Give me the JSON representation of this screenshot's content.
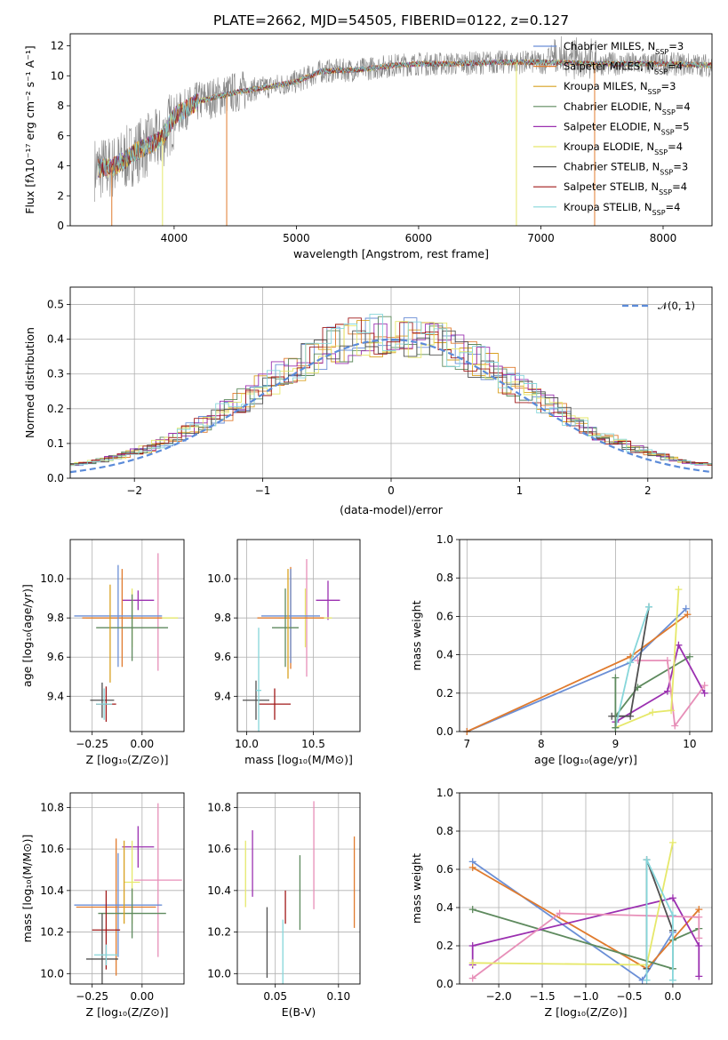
{
  "figure": {
    "title": "PLATE=2662, MJD=54505, FIBERID=0122, z=0.127",
    "colors": {
      "Chabrier MILES": "#6b8fd6",
      "Salpeter MILES": "#e07b2e",
      "Kroupa MILES": "#d9a020",
      "Chabrier ELODIE": "#5e8a5e",
      "Salpeter ELODIE": "#9b30b0",
      "Kroupa ELODIE": "#e6e86a",
      "Chabrier STELIB": "#505050",
      "Salpeter STELIB": "#a01818",
      "Kroupa STELIB": "#86d6da",
      "pink": "#e78fb8"
    }
  },
  "chart_data": [
    {
      "id": "spectrum",
      "type": "line",
      "xlabel": "wavelength [Angstrom, rest frame]",
      "ylabel": "Flux [fλ10⁻¹⁷ erg cm⁻² s⁻¹ A⁻¹]",
      "xlim": [
        3150,
        8400
      ],
      "ylim": [
        0,
        12.8
      ],
      "xticks": [
        "4000",
        "5000",
        "6000",
        "7000",
        "8000"
      ],
      "yticks": [
        "0",
        "2",
        "4",
        "6",
        "8",
        "10",
        "12"
      ],
      "grid": false,
      "legend_position": "right",
      "legend": [
        {
          "label": "Chabrier MILES, N",
          "sub": "SSP",
          "eq": "=3",
          "color": "#6b8fd6"
        },
        {
          "label": "Salpeter MILES, N",
          "sub": "SSP",
          "eq": "=4",
          "color": "#e07b2e"
        },
        {
          "label": "Kroupa MILES, N",
          "sub": "SSP",
          "eq": "=3",
          "color": "#d9a020"
        },
        {
          "label": "Chabrier ELODIE, N",
          "sub": "SSP",
          "eq": "=4",
          "color": "#5e8a5e"
        },
        {
          "label": "Salpeter ELODIE, N",
          "sub": "SSP",
          "eq": "=5",
          "color": "#9b30b0"
        },
        {
          "label": "Kroupa ELODIE, N",
          "sub": "SSP",
          "eq": "=4",
          "color": "#e6e86a"
        },
        {
          "label": "Chabrier STELIB, N",
          "sub": "SSP",
          "eq": "=3",
          "color": "#505050"
        },
        {
          "label": "Salpeter STELIB, N",
          "sub": "SSP",
          "eq": "=4",
          "color": "#a01818"
        },
        {
          "label": "Kroupa STELIB, N",
          "sub": "SSP",
          "eq": "=4",
          "color": "#86d6da"
        }
      ],
      "data_shape": {
        "x": [
          3350,
          3500,
          3700,
          3900,
          4000,
          4200,
          4500,
          4800,
          5000,
          5200,
          5500,
          5800,
          6000,
          6300,
          6600,
          7000,
          7500,
          8000,
          8400
        ],
        "y": [
          3.8,
          3.9,
          5.0,
          5.8,
          7.3,
          8.3,
          8.9,
          9.3,
          9.6,
          10.3,
          10.4,
          10.7,
          10.8,
          10.8,
          10.9,
          10.9,
          10.8,
          10.8,
          10.7
        ]
      }
    },
    {
      "id": "residuals",
      "type": "histogram",
      "xlabel": "(data-model)/error",
      "ylabel": "Normed distribution",
      "xlim": [
        -2.5,
        2.5
      ],
      "ylim": [
        0,
        0.55
      ],
      "xticks": [
        "−2",
        "−1",
        "0",
        "1",
        "2"
      ],
      "yticks": [
        "0.0",
        "0.1",
        "0.2",
        "0.3",
        "0.4",
        "0.5"
      ],
      "grid": true,
      "legend_position": "top-right",
      "legend_label": "𝒩(0, 1)",
      "gaussian_color": "#5b8bd9"
    },
    {
      "id": "age_vs_Z",
      "type": "scatter",
      "xlabel": "Z [log₁₀(Z/Z⊙)]",
      "ylabel": "age  [log₁₀(age/yr)]",
      "xlim": [
        -0.36,
        0.21
      ],
      "ylim": [
        9.22,
        10.2
      ],
      "xticks": [
        "−0.25",
        "0.00"
      ],
      "xtick_values": [
        -0.25,
        0.0
      ],
      "yticks": [
        "9.4",
        "9.6",
        "9.8",
        "10.0"
      ],
      "ytick_values": [
        9.4,
        9.6,
        9.8,
        10.0
      ],
      "grid": true,
      "errorbars": [
        {
          "x": -0.02,
          "y": 9.89,
          "xerr": 0.08,
          "yerr": 0.05,
          "color": "#9b30b0"
        },
        {
          "x": 0.08,
          "y": 9.83,
          "xerr": 0.0,
          "yerr": 0.3,
          "color": "#e78fb8"
        },
        {
          "x": -0.05,
          "y": 9.8,
          "xerr": 0.23,
          "yerr": 0.15,
          "color": "#e6e86a"
        },
        {
          "x": -0.1,
          "y": 9.8,
          "xerr": 0.2,
          "yerr": 0.25,
          "color": "#e07b2e"
        },
        {
          "x": -0.12,
          "y": 9.81,
          "xerr": 0.22,
          "yerr": 0.26,
          "color": "#6b8fd6"
        },
        {
          "x": -0.05,
          "y": 9.75,
          "xerr": 0.18,
          "yerr": 0.17,
          "color": "#5e8a5e"
        },
        {
          "x": -0.16,
          "y": 9.72,
          "xerr": 0.0,
          "yerr": 0.25,
          "color": "#d9a020"
        },
        {
          "x": -0.2,
          "y": 9.38,
          "xerr": 0.06,
          "yerr": 0.09,
          "color": "#505050"
        },
        {
          "x": -0.18,
          "y": 9.36,
          "xerr": 0.05,
          "yerr": 0.09,
          "color": "#a01818"
        },
        {
          "x": -0.19,
          "y": 9.36,
          "xerr": 0.04,
          "yerr": 0.08,
          "color": "#86d6da"
        }
      ]
    },
    {
      "id": "age_vs_mass",
      "type": "scatter",
      "xlabel": "mass [log₁₀(M/M⊙)]",
      "ylabel": "",
      "xlim": [
        9.93,
        10.85
      ],
      "ylim": [
        9.22,
        10.2
      ],
      "xticks": [
        "10.0",
        "10.5"
      ],
      "xtick_values": [
        10.0,
        10.5
      ],
      "yticks": [
        "9.4",
        "9.6",
        "9.8",
        "10.0"
      ],
      "ytick_values": [
        9.4,
        9.6,
        9.8,
        10.0
      ],
      "grid": true,
      "errorbars": [
        {
          "x": 10.61,
          "y": 9.89,
          "xerr": 0.09,
          "yerr": 0.1,
          "color": "#9b30b0"
        },
        {
          "x": 10.45,
          "y": 9.8,
          "xerr": 0.0,
          "yerr": 0.3,
          "color": "#e78fb8"
        },
        {
          "x": 10.44,
          "y": 9.8,
          "xerr": 0.2,
          "yerr": 0.15,
          "color": "#e6e86a"
        },
        {
          "x": 10.33,
          "y": 9.8,
          "xerr": 0.25,
          "yerr": 0.26,
          "color": "#e07b2e"
        },
        {
          "x": 10.33,
          "y": 9.81,
          "xerr": 0.22,
          "yerr": 0.24,
          "color": "#6b8fd6"
        },
        {
          "x": 10.29,
          "y": 9.75,
          "xerr": 0.1,
          "yerr": 0.2,
          "color": "#5e8a5e"
        },
        {
          "x": 10.31,
          "y": 9.77,
          "xerr": 0.0,
          "yerr": 0.28,
          "color": "#d9a020"
        },
        {
          "x": 10.07,
          "y": 9.38,
          "xerr": 0.1,
          "yerr": 0.1,
          "color": "#505050"
        },
        {
          "x": 10.21,
          "y": 9.36,
          "xerr": 0.12,
          "yerr": 0.08,
          "color": "#a01818"
        },
        {
          "x": 10.09,
          "y": 9.43,
          "xerr": 0.02,
          "yerr": 0.32,
          "color": "#86d6da"
        }
      ]
    },
    {
      "id": "weight_vs_age",
      "type": "line",
      "xlabel": "age  [log₁₀(age/yr)]",
      "ylabel": "mass weight",
      "xlim": [
        6.9,
        10.3
      ],
      "ylim": [
        0,
        1.0
      ],
      "xticks": [
        "7",
        "8",
        "9",
        "10"
      ],
      "xtick_values": [
        7,
        8,
        9,
        10
      ],
      "yticks": [
        "0.0",
        "0.2",
        "0.4",
        "0.6",
        "0.8",
        "1.0"
      ],
      "ytick_values": [
        0,
        0.2,
        0.4,
        0.6,
        0.8,
        1.0
      ],
      "grid": true,
      "series": [
        {
          "color": "#6b8fd6",
          "x": [
            7.0,
            9.2,
            9.95
          ],
          "y": [
            0.0,
            0.36,
            0.64
          ]
        },
        {
          "color": "#e07b2e",
          "x": [
            7.0,
            9.2,
            9.97
          ],
          "y": [
            0.0,
            0.39,
            0.61
          ]
        },
        {
          "color": "#5e8a5e",
          "x": [
            9.0,
            9.3,
            10.0
          ],
          "y": [
            0.08,
            0.23,
            0.39
          ]
        },
        {
          "color": "#9b30b0",
          "x": [
            9.0,
            9.7,
            9.85,
            10.2
          ],
          "y": [
            0.05,
            0.21,
            0.45,
            0.2
          ]
        },
        {
          "color": "#e78fb8",
          "x": [
            9.3,
            9.7,
            9.8,
            10.2
          ],
          "y": [
            0.37,
            0.37,
            0.03,
            0.24
          ]
        },
        {
          "color": "#e6e86a",
          "x": [
            9.0,
            9.5,
            9.75,
            9.85
          ],
          "y": [
            0.02,
            0.1,
            0.11,
            0.74
          ]
        },
        {
          "color": "#505050",
          "x": [
            8.95,
            9.2,
            9.45
          ],
          "y": [
            0.08,
            0.08,
            0.65
          ]
        },
        {
          "color": "#86d6da",
          "x": [
            9.0,
            9.2,
            9.45
          ],
          "y": [
            0.02,
            0.36,
            0.65
          ]
        },
        {
          "color": "#5e8a5e",
          "x": [
            9.0,
            9.0
          ],
          "y": [
            0.02,
            0.28
          ]
        }
      ]
    },
    {
      "id": "mass_vs_Z",
      "type": "scatter",
      "xlabel": "Z [log₁₀(Z/Z⊙)]",
      "ylabel": "mass [log₁₀(M/M⊙)]",
      "xlim": [
        -0.36,
        0.21
      ],
      "ylim": [
        9.95,
        10.87
      ],
      "xticks": [
        "−0.25",
        "0.00"
      ],
      "xtick_values": [
        -0.25,
        0.0
      ],
      "yticks": [
        "10.0",
        "10.2",
        "10.4",
        "10.6",
        "10.8"
      ],
      "ytick_values": [
        10.0,
        10.2,
        10.4,
        10.6,
        10.8
      ],
      "grid": true,
      "errorbars": [
        {
          "x": 0.08,
          "y": 10.45,
          "xerr": 0.12,
          "yerr": 0.37,
          "color": "#e78fb8"
        },
        {
          "x": -0.02,
          "y": 10.61,
          "xerr": 0.08,
          "yerr": 0.1,
          "color": "#9b30b0"
        },
        {
          "x": -0.05,
          "y": 10.44,
          "xerr": 0.04,
          "yerr": 0.2,
          "color": "#e6e86a"
        },
        {
          "x": -0.13,
          "y": 10.32,
          "xerr": 0.2,
          "yerr": 0.33,
          "color": "#e07b2e"
        },
        {
          "x": -0.12,
          "y": 10.33,
          "xerr": 0.22,
          "yerr": 0.25,
          "color": "#6b8fd6"
        },
        {
          "x": -0.05,
          "y": 10.29,
          "xerr": 0.17,
          "yerr": 0.12,
          "color": "#5e8a5e"
        },
        {
          "x": -0.09,
          "y": 10.44,
          "xerr": 0.0,
          "yerr": 0.2,
          "color": "#d9a020"
        },
        {
          "x": -0.18,
          "y": 10.21,
          "xerr": 0.07,
          "yerr": 0.19,
          "color": "#a01818"
        },
        {
          "x": -0.2,
          "y": 10.07,
          "xerr": 0.08,
          "yerr": 0.22,
          "color": "#505050"
        },
        {
          "x": -0.18,
          "y": 10.09,
          "xerr": 0.06,
          "yerr": 0.05,
          "color": "#86d6da"
        }
      ]
    },
    {
      "id": "mass_vs_ebv",
      "type": "scatter",
      "xlabel": "E(B-V)",
      "ylabel": "",
      "xlim": [
        0.02,
        0.117
      ],
      "ylim": [
        9.95,
        10.87
      ],
      "xticks": [
        "0.05",
        "0.10"
      ],
      "xtick_values": [
        0.05,
        0.1
      ],
      "yticks": [
        "10.0",
        "10.2",
        "10.4",
        "10.6",
        "10.8"
      ],
      "ytick_values": [
        10.0,
        10.2,
        10.4,
        10.6,
        10.8
      ],
      "grid": true,
      "errorbars": [
        {
          "x": 0.0265,
          "y": 10.48,
          "xerr": 0.0,
          "yerr": 0.16,
          "color": "#e6e86a"
        },
        {
          "x": 0.032,
          "y": 10.53,
          "xerr": 0.0,
          "yerr": 0.16,
          "color": "#9b30b0"
        },
        {
          "x": 0.0435,
          "y": 10.15,
          "xerr": 0.0,
          "yerr": 0.17,
          "color": "#505050"
        },
        {
          "x": 0.056,
          "y": 10.1,
          "xerr": 0.0,
          "yerr": 0.16,
          "color": "#86d6da"
        },
        {
          "x": 0.058,
          "y": 10.32,
          "xerr": 0.0,
          "yerr": 0.08,
          "color": "#a01818"
        },
        {
          "x": 0.0695,
          "y": 10.39,
          "xerr": 0.0,
          "yerr": 0.18,
          "color": "#5e8a5e"
        },
        {
          "x": 0.0805,
          "y": 10.57,
          "xerr": 0.0,
          "yerr": 0.26,
          "color": "#e78fb8"
        },
        {
          "x": 0.1125,
          "y": 10.44,
          "xerr": 0.0,
          "yerr": 0.22,
          "color": "#e07b2e"
        }
      ]
    },
    {
      "id": "weight_vs_Z",
      "type": "line",
      "xlabel": "Z [log₁₀(Z/Z⊙)]",
      "ylabel": "mass weight",
      "xlim": [
        -2.45,
        0.45
      ],
      "ylim": [
        0,
        1.0
      ],
      "xticks": [
        "−2.0",
        "−1.5",
        "−1.0",
        "−0.5",
        "0.0"
      ],
      "xtick_values": [
        -2.0,
        -1.5,
        -1.0,
        -0.5,
        0.0
      ],
      "yticks": [
        "0.0",
        "0.2",
        "0.4",
        "0.6",
        "0.8",
        "1.0"
      ],
      "ytick_values": [
        0,
        0.2,
        0.4,
        0.6,
        0.8,
        1.0
      ],
      "grid": true,
      "series": [
        {
          "color": "#6b8fd6",
          "x": [
            -2.3,
            -0.35,
            0.0
          ],
          "y": [
            0.64,
            0.02,
            0.27
          ]
        },
        {
          "color": "#e07b2e",
          "x": [
            -2.3,
            -0.3,
            0.3
          ],
          "y": [
            0.61,
            0.08,
            0.39
          ]
        },
        {
          "color": "#5e8a5e",
          "x": [
            -2.3,
            0.0,
            0.0,
            0.3
          ],
          "y": [
            0.39,
            0.08,
            0.23,
            0.29
          ]
        },
        {
          "color": "#9b30b0",
          "x": [
            -2.3,
            -2.3,
            0.0,
            0.3,
            0.3
          ],
          "y": [
            0.1,
            0.2,
            0.45,
            0.2,
            0.04
          ]
        },
        {
          "color": "#e78fb8",
          "x": [
            -2.3,
            -1.3,
            0.3,
            0.3
          ],
          "y": [
            0.03,
            0.37,
            0.35,
            0.24
          ]
        },
        {
          "color": "#e6e86a",
          "x": [
            -2.3,
            -0.3,
            0.0
          ],
          "y": [
            0.11,
            0.1,
            0.74
          ]
        },
        {
          "color": "#505050",
          "x": [
            -0.3,
            -0.3,
            0.0
          ],
          "y": [
            0.08,
            0.65,
            0.28
          ]
        },
        {
          "color": "#86d6da",
          "x": [
            -0.3,
            -0.3,
            0.0,
            0.0
          ],
          "y": [
            0.02,
            0.65,
            0.36,
            0.02
          ]
        }
      ]
    }
  ]
}
